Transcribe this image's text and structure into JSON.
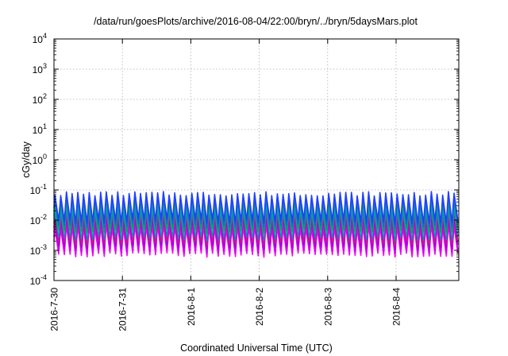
{
  "chart_data": {
    "type": "line",
    "title": "/data/run/goesPlots/archive/2016-08-04/22:00/bryn/../bryn/5daysMars.plot",
    "xlabel": "Coordinated Universal Time (UTC)",
    "ylabel": "cGy/day",
    "yscale": "log",
    "ylim": [
      0.0001,
      10000
    ],
    "xlim": [
      "2016-07-30",
      "2016-08-04 22:00"
    ],
    "grid": true,
    "y_ticks": [
      {
        "value": 0.0001,
        "base": "10",
        "exp": "-4"
      },
      {
        "value": 0.001,
        "base": "10",
        "exp": "-3"
      },
      {
        "value": 0.01,
        "base": "10",
        "exp": "-2"
      },
      {
        "value": 0.1,
        "base": "10",
        "exp": "-1"
      },
      {
        "value": 1,
        "base": "10",
        "exp": "0"
      },
      {
        "value": 10,
        "base": "10",
        "exp": "1"
      },
      {
        "value": 100,
        "base": "10",
        "exp": "2"
      },
      {
        "value": 1000,
        "base": "10",
        "exp": "3"
      },
      {
        "value": 10000,
        "base": "10",
        "exp": "4"
      }
    ],
    "x_ticks": [
      {
        "value": "2016-07-30",
        "label": "2016-7-30"
      },
      {
        "value": "2016-07-31",
        "label": "2016-7-31"
      },
      {
        "value": "2016-08-01",
        "label": "2016-8-1"
      },
      {
        "value": "2016-08-02",
        "label": "2016-8-2"
      },
      {
        "value": "2016-08-03",
        "label": "2016-8-3"
      },
      {
        "value": "2016-08-04",
        "label": "2016-8-4"
      }
    ],
    "pattern": {
      "oscillations_per_day": 12,
      "peak_range": [
        0.05,
        0.09
      ],
      "trough_range": [
        0.0006,
        0.0015
      ]
    },
    "series": [
      {
        "color": "#ff00ff",
        "peak": 0.006,
        "trough": 0.0007
      },
      {
        "color": "#d000f0",
        "peak": 0.009,
        "trough": 0.0009
      },
      {
        "color": "#a000e0",
        "peak": 0.013,
        "trough": 0.0013
      },
      {
        "color": "#c81e78",
        "peak": 0.018,
        "trough": 0.0018
      },
      {
        "color": "#0090b0",
        "peak": 0.025,
        "trough": 0.0025
      },
      {
        "color": "#00b0c0",
        "peak": 0.035,
        "trough": 0.0035
      },
      {
        "color": "#00a060",
        "peak": 0.045,
        "trough": 0.0045
      },
      {
        "color": "#1e60e0",
        "peak": 0.06,
        "trough": 0.0065
      },
      {
        "color": "#2040ff",
        "peak": 0.075,
        "trough": 0.009
      }
    ]
  }
}
